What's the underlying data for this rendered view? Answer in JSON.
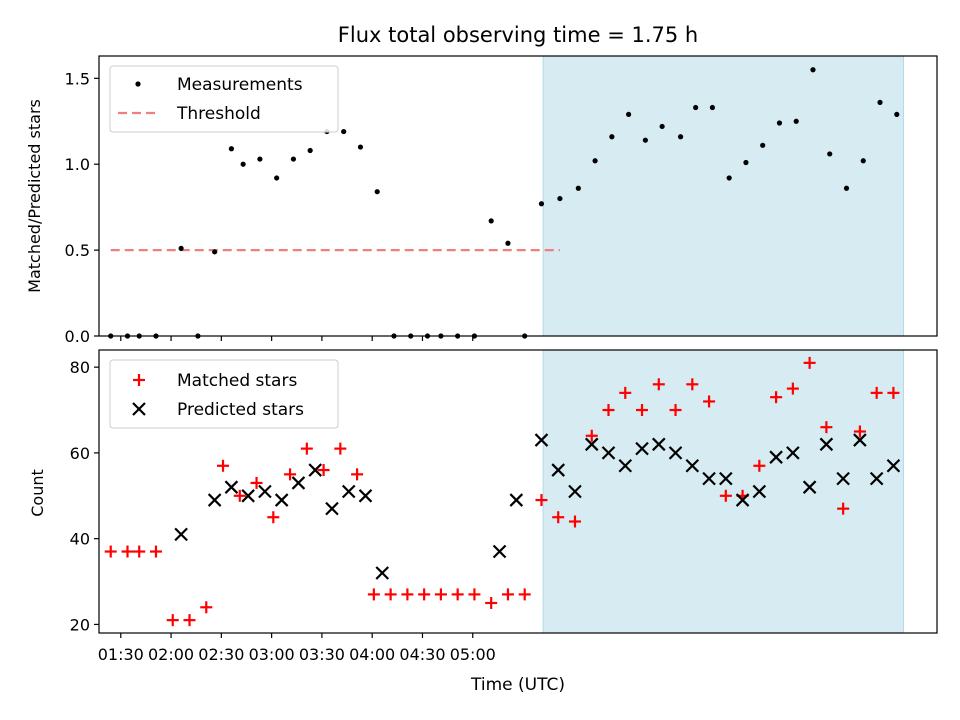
{
  "chart_data": [
    {
      "type": "scatter",
      "title": "Flux total observing time = 1.75 h",
      "ylabel": "Matched/Predicted stars",
      "xlabel": "",
      "ylim": [
        0,
        1.63
      ],
      "yticks": [
        0.0,
        0.5,
        1.0,
        1.5
      ],
      "ytick_labels": [
        "0.0",
        "0.5",
        "1.0",
        "1.5"
      ],
      "legend": {
        "position": "top-left",
        "entries": [
          "Measurements",
          "Threshold"
        ]
      },
      "threshold": {
        "y": 0.5,
        "x_start": 84,
        "x_end": 352,
        "color": "#f08080"
      },
      "series": [
        {
          "name": "Measurements",
          "color": "#000000",
          "marker": "dot",
          "x": [
            84,
            94,
            101,
            111,
            126,
            136,
            146,
            156,
            163,
            173,
            183,
            193,
            203,
            213,
            223,
            233,
            243,
            253,
            263,
            273,
            281,
            291,
            301,
            311,
            321,
            331,
            341,
            352,
            363,
            373,
            383,
            393,
            403,
            413,
            424,
            433,
            443,
            453,
            463,
            473,
            483,
            493,
            503,
            513,
            523,
            533,
            543,
            553
          ],
          "y": [
            0.0,
            0.0,
            0.0,
            0.0,
            0.51,
            0.0,
            0.49,
            1.09,
            1.0,
            1.03,
            0.92,
            1.03,
            1.08,
            1.19,
            1.19,
            1.1,
            0.84,
            0.0,
            0.0,
            0.0,
            0.0,
            0.0,
            0.0,
            0.67,
            0.54,
            0.0,
            0.77,
            0.8,
            0.86,
            1.02,
            1.16,
            1.29,
            1.14,
            1.22,
            1.16,
            1.33,
            1.33,
            0.92,
            1.01,
            1.11,
            1.24,
            1.25,
            1.55,
            1.06,
            0.86,
            1.02,
            1.36,
            1.29
          ]
        }
      ]
    },
    {
      "type": "scatter",
      "title": "",
      "xlabel": "Time (UTC)",
      "ylabel": "Count",
      "xlim": [
        77,
        577
      ],
      "ylim": [
        18,
        84
      ],
      "yticks": [
        20,
        40,
        60,
        80
      ],
      "ytick_labels": [
        "20",
        "40",
        "60",
        "80"
      ],
      "x_ticks": [
        90,
        120,
        150,
        180,
        210,
        240,
        270,
        300
      ],
      "x_tick_labels": [
        "01:30",
        "02:00",
        "02:30",
        "03:00",
        "03:30",
        "04:00",
        "04:30",
        "05:00"
      ],
      "shaded_region": {
        "x_start": 342,
        "x_end": 557,
        "color": "#add8e6"
      },
      "legend": {
        "position": "top-left",
        "entries": [
          "Matched stars",
          "Predicted stars"
        ]
      },
      "series": [
        {
          "name": "Matched stars",
          "color": "#ff0000",
          "marker": "plus",
          "x": [
            84,
            94,
            101,
            111,
            121,
            131,
            141,
            151,
            161,
            171,
            181,
            191,
            201,
            211,
            221,
            231,
            241,
            251,
            261,
            271,
            281,
            291,
            301,
            311,
            321,
            331,
            341,
            351,
            361,
            371,
            381,
            391,
            401,
            411,
            421,
            431,
            441,
            451,
            461,
            471,
            481,
            491,
            501,
            511,
            521,
            531,
            541,
            551
          ],
          "y": [
            37,
            37,
            37,
            37,
            21,
            21,
            24,
            57,
            50,
            53,
            45,
            55,
            61,
            56,
            61,
            55,
            27,
            27,
            27,
            27,
            27,
            27,
            27,
            25,
            27,
            27,
            49,
            45,
            44,
            64,
            70,
            74,
            70,
            76,
            70,
            76,
            72,
            50,
            50,
            57,
            73,
            75,
            81,
            66,
            47,
            65,
            74,
            74
          ]
        },
        {
          "name": "Predicted stars",
          "color": "#000000",
          "marker": "x",
          "x": [
            126,
            146,
            156,
            166,
            176,
            186,
            196,
            206,
            216,
            226,
            236,
            246,
            316,
            326,
            341,
            351,
            361,
            371,
            381,
            391,
            401,
            411,
            421,
            431,
            441,
            451,
            461,
            471,
            481,
            491,
            501,
            511,
            521,
            531,
            541,
            551
          ],
          "y": [
            41,
            49,
            52,
            50,
            51,
            49,
            53,
            56,
            47,
            51,
            50,
            32,
            37,
            49,
            63,
            56,
            51,
            62,
            60,
            57,
            61,
            62,
            60,
            57,
            54,
            54,
            49,
            51,
            59,
            60,
            52,
            62,
            54,
            63,
            54,
            57
          ]
        }
      ]
    }
  ]
}
